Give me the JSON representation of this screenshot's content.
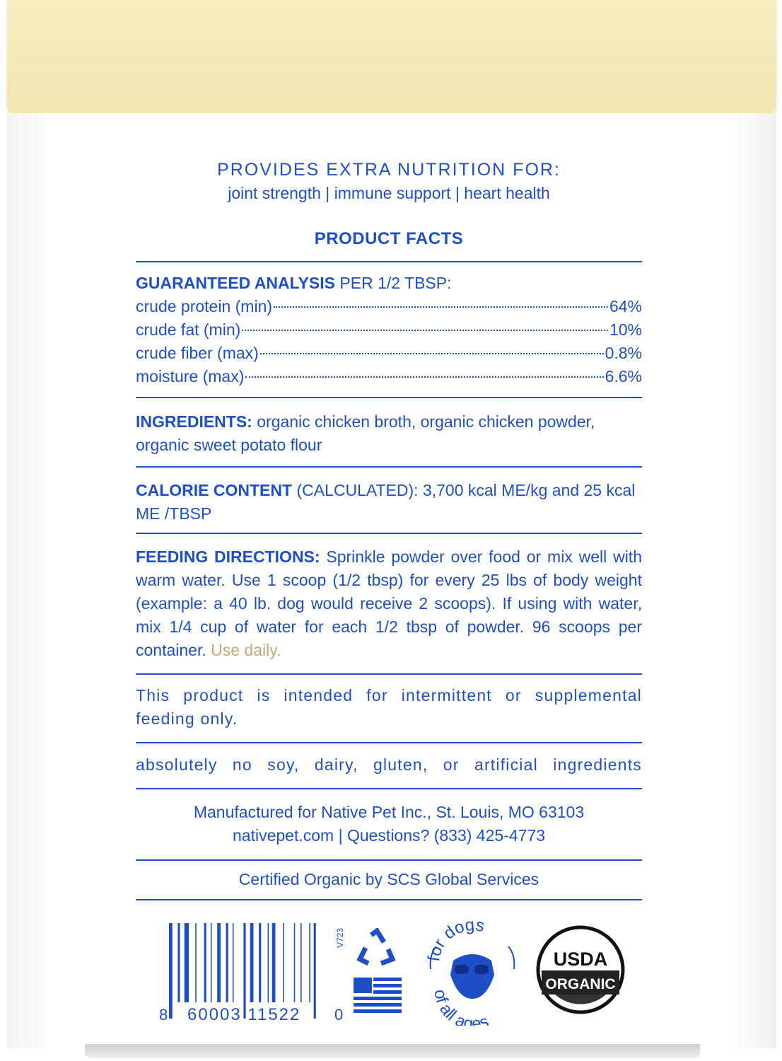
{
  "header": {
    "title": "PROVIDES EXTRA NUTRITION FOR:",
    "benefits": "joint strength | immune support | heart health",
    "product_facts": "PRODUCT FACTS"
  },
  "analysis": {
    "label": "GUARANTEED ANALYSIS",
    "per": " PER 1/2 TBSP:",
    "rows": [
      {
        "name": "crude protein (min)",
        "value": "64%"
      },
      {
        "name": "crude fat (min)",
        "value": "10%"
      },
      {
        "name": "crude fiber (max)",
        "value": "0.8%"
      },
      {
        "name": "moisture (max)",
        "value": "6.6%"
      }
    ]
  },
  "ingredients": {
    "label": "INGREDIENTS:",
    "text": " organic chicken broth, organic chicken powder, organic sweet potato flour"
  },
  "calorie": {
    "label": "CALORIE CONTENT",
    "text": " (CALCULATED): 3,700 kcal ME/kg and 25 kcal ME /TBSP"
  },
  "feeding": {
    "label": "FEEDING DIRECTIONS:",
    "text": " Sprinkle powder over food or mix well with warm water. Use 1 scoop (1/2 tbsp) for every 25 lbs of body weight (example: a 40 lb. dog would receive 2 scoops). If using with water, mix 1/4 cup of water for each 1/2 tbsp of powder. 96 scoops per container. ",
    "highlight": "Use daily."
  },
  "notice": "This product is intended for intermittent or supplemental feeding only.",
  "free_from": "absolutely no soy, dairy, gluten, or artificial ingredients",
  "manufacturer": {
    "line1": "Manufactured for Native Pet Inc., St. Louis, MO 63103",
    "line2": "nativepet.com | Questions? (833) 425-4773"
  },
  "certified": "Certified Organic by SCS Global Services",
  "barcode": {
    "lead": "8",
    "digits": "60003 11522",
    "check": "0",
    "code": "V723"
  },
  "badge": {
    "top": "for dogs",
    "bottom": "of all ages"
  },
  "usda": {
    "top": "USDA",
    "bottom": "ORGANIC"
  },
  "colors": {
    "brand_blue": "#1f4fc4",
    "lid": "#f5ebbb",
    "accent_gold": "#c6a874"
  }
}
